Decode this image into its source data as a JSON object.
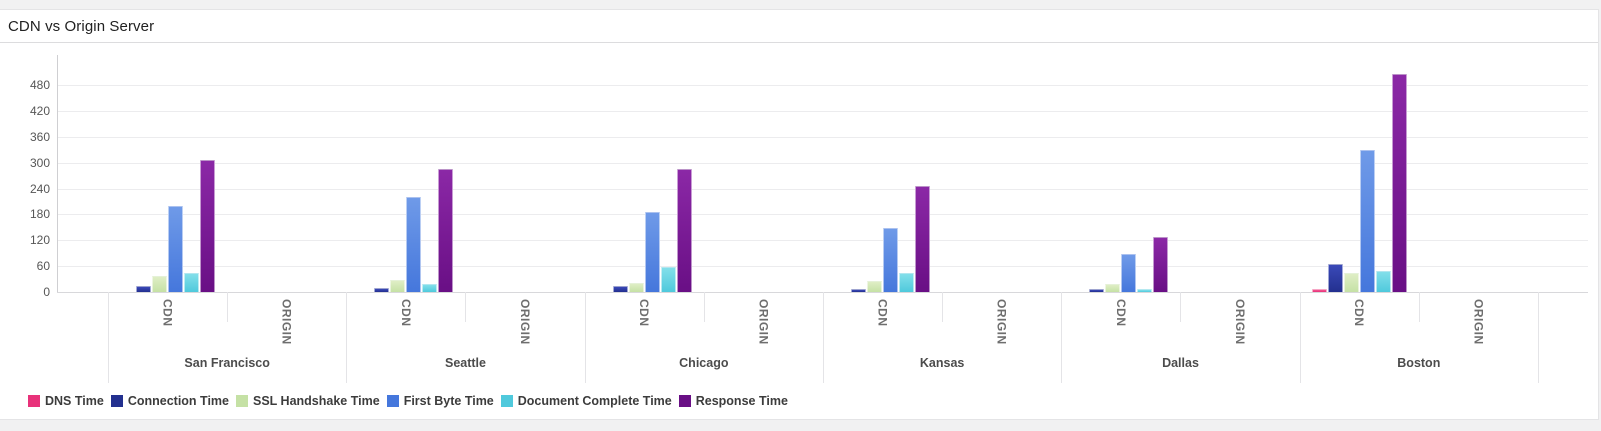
{
  "card": {
    "title": "CDN vs Origin Server"
  },
  "chart_data": {
    "type": "bar",
    "title": "CDN vs Origin Server",
    "categories": [
      "San Francisco",
      "Seattle",
      "Chicago",
      "Kansas",
      "Dallas",
      "Boston"
    ],
    "subcategories": [
      "CDN",
      "ORIGIN"
    ],
    "yticks": [
      0,
      60,
      120,
      180,
      240,
      300,
      360,
      420,
      480
    ],
    "ylim": [
      0,
      549
    ],
    "grid": "horizontal",
    "legend_position": "bottom",
    "series": [
      {
        "name": "DNS Time",
        "color": "#e8327a",
        "color_top": "#f2558f",
        "cdn": [
          1,
          3,
          3,
          3,
          1,
          8
        ],
        "origin": [
          0,
          0,
          0,
          0,
          0,
          0
        ]
      },
      {
        "name": "Connection Time",
        "color": "#23308f",
        "color_top": "#3a49b8",
        "cdn": [
          15,
          10,
          15,
          8,
          8,
          65
        ],
        "origin": [
          0,
          0,
          0,
          0,
          0,
          0
        ]
      },
      {
        "name": "SSL Handshake Time",
        "color": "#c5e1a5",
        "color_top": "#dfeec5",
        "cdn": [
          38,
          28,
          22,
          25,
          18,
          45
        ],
        "origin": [
          0,
          0,
          0,
          0,
          0,
          0
        ]
      },
      {
        "name": "First Byte Time",
        "color": "#4577dc",
        "color_top": "#6f9ae8",
        "cdn": [
          200,
          220,
          185,
          148,
          88,
          330
        ],
        "origin": [
          0,
          0,
          0,
          0,
          0,
          0
        ]
      },
      {
        "name": "Document Complete Time",
        "color": "#4fc9dc",
        "color_top": "#82dfea",
        "cdn": [
          43,
          18,
          57,
          45,
          8,
          48
        ],
        "origin": [
          0,
          0,
          0,
          0,
          0,
          0
        ]
      },
      {
        "name": "Response Time",
        "color": "#690f85",
        "color_top": "#8b28a6",
        "cdn": [
          305,
          285,
          285,
          245,
          128,
          505
        ],
        "origin": [
          0,
          0,
          0,
          0,
          0,
          0
        ]
      }
    ]
  }
}
